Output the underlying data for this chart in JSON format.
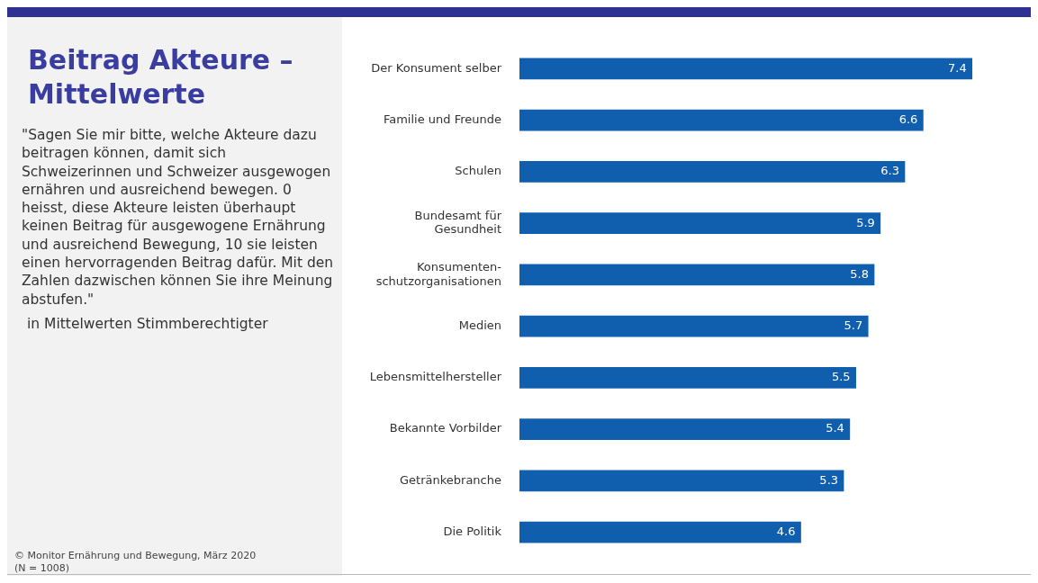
{
  "chart_data": {
    "type": "bar",
    "orientation": "horizontal",
    "title": "Beitrag Akteure – Mittelwerte",
    "subtitle": "\"Sagen Sie mir bitte, welche Akteure dazu beitragen können, damit sich Schweizerinnen und Schweizer ausgewogen ernähren und ausreichend bewegen. 0 heisst, diese Akteure leisten überhaupt keinen Beitrag für ausgewogene Ernährung und ausreichend Bewegung, 10 sie leisten einen hervorragenden Beitrag dafür. Mit den Zahlen dazwischen können Sie ihre Meinung abstufen.\"",
    "annotations": [
      "in Mittelwerten Stimmberechtigter",
      "© Monitor Ernährung und Bewegung, März 2020 (N = 1008)"
    ],
    "categories": [
      "Der Konsument selber",
      "Familie und Freunde",
      "Schulen",
      "Bundesamt für Gesundheit",
      "Konsumenten-schutzorganisationen",
      "Medien",
      "Lebensmittelhersteller",
      "Bekannte Vorbilder",
      "Getränkebranche",
      "Die Politik"
    ],
    "values": [
      7.4,
      6.6,
      6.3,
      5.9,
      5.8,
      5.7,
      5.5,
      5.4,
      5.3,
      4.6
    ],
    "color": "#0f5fae",
    "data_labels": true
  }
}
